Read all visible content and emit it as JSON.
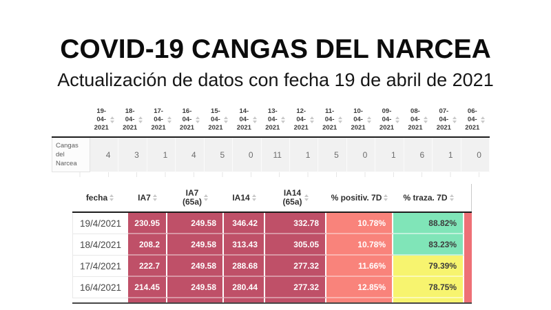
{
  "page": {
    "title": "COVID-19 CANGAS DEL NARCEA",
    "subtitle": "Actualización de datos con fecha 19 de abril de 2021"
  },
  "daily_cases_table": {
    "row_label": "Cangas del Narcea",
    "row_label_lines": [
      "Cangas",
      "del",
      "Narcea"
    ],
    "dates": [
      [
        "19-",
        "04-",
        "2021"
      ],
      [
        "18-",
        "04-",
        "2021"
      ],
      [
        "17-",
        "04-",
        "2021"
      ],
      [
        "16-",
        "04-",
        "2021"
      ],
      [
        "15-",
        "04-",
        "2021"
      ],
      [
        "14-",
        "04-",
        "2021"
      ],
      [
        "13-",
        "04-",
        "2021"
      ],
      [
        "12-",
        "04-",
        "2021"
      ],
      [
        "11-",
        "04-",
        "2021"
      ],
      [
        "10-",
        "04-",
        "2021"
      ],
      [
        "09-",
        "04-",
        "2021"
      ],
      [
        "08-",
        "04-",
        "2021"
      ],
      [
        "07-",
        "04-",
        "2021"
      ],
      [
        "06-",
        "04-",
        "2021"
      ]
    ],
    "values": [
      "4",
      "3",
      "1",
      "4",
      "5",
      "0",
      "11",
      "1",
      "5",
      "0",
      "1",
      "6",
      "1",
      "0"
    ]
  },
  "indicators_table": {
    "headers": {
      "fecha": "fecha",
      "ia7": "IA7",
      "ia7_65a_line1": "IA7",
      "ia7_65a_line2": "(65a)",
      "ia14": "IA14",
      "ia14_65a_line1": "IA14",
      "ia14_65a_line2": "(65a)",
      "positiv_7d": "% positiv. 7D",
      "traza_7d": "% traza. 7D"
    },
    "rows": [
      {
        "fecha": "19/4/2021",
        "ia7": "230.95",
        "ia7_65a": "249.58",
        "ia14": "346.42",
        "ia14_65a": "332.78",
        "positiv_7d": "10.78%",
        "traza_7d": "88.82%",
        "traza_level": "green"
      },
      {
        "fecha": "18/4/2021",
        "ia7": "208.2",
        "ia7_65a": "249.58",
        "ia14": "313.43",
        "ia14_65a": "305.05",
        "positiv_7d": "10.78%",
        "traza_7d": "83.23%",
        "traza_level": "green"
      },
      {
        "fecha": "17/4/2021",
        "ia7": "222.7",
        "ia7_65a": "249.58",
        "ia14": "288.68",
        "ia14_65a": "277.32",
        "positiv_7d": "11.66%",
        "traza_7d": "79.39%",
        "traza_level": "yellow"
      },
      {
        "fecha": "16/4/2021",
        "ia7": "214.45",
        "ia7_65a": "249.58",
        "ia14": "280.44",
        "ia14_65a": "277.32",
        "positiv_7d": "12.85%",
        "traza_7d": "78.75%",
        "traza_level": "yellow"
      }
    ]
  },
  "icons": {
    "sort": "sort-arrows-icon"
  },
  "colors": {
    "ia_cell_bg": "#bf5068",
    "positiv_cell_bg": "#f9837b",
    "traza_green_bg": "#80e5b8",
    "traza_yellow_bg": "#f7f46f",
    "edge_strip_bg": "#ee7076",
    "header_border": "#1c1c1c",
    "cases_cell_bg": "#f1f1f1"
  },
  "chart_data": [
    {
      "type": "table",
      "title": "",
      "columns": [
        "19-04-2021",
        "18-04-2021",
        "17-04-2021",
        "16-04-2021",
        "15-04-2021",
        "14-04-2021",
        "13-04-2021",
        "12-04-2021",
        "11-04-2021",
        "10-04-2021",
        "09-04-2021",
        "08-04-2021",
        "07-04-2021",
        "06-04-2021"
      ],
      "rows": [
        {
          "label": "Cangas del Narcea",
          "values": [
            4,
            3,
            1,
            4,
            5,
            0,
            11,
            1,
            5,
            0,
            1,
            6,
            1,
            0
          ]
        }
      ]
    },
    {
      "type": "table",
      "title": "",
      "columns": [
        "fecha",
        "IA7",
        "IA7 (65a)",
        "IA14",
        "IA14 (65a)",
        "% positiv. 7D",
        "% traza. 7D"
      ],
      "rows": [
        [
          "19/4/2021",
          230.95,
          249.58,
          346.42,
          332.78,
          "10.78%",
          "88.82%"
        ],
        [
          "18/4/2021",
          208.2,
          249.58,
          313.43,
          305.05,
          "10.78%",
          "83.23%"
        ],
        [
          "17/4/2021",
          222.7,
          249.58,
          288.68,
          277.32,
          "11.66%",
          "79.39%"
        ],
        [
          "16/4/2021",
          214.45,
          249.58,
          280.44,
          277.32,
          "12.85%",
          "78.75%"
        ]
      ]
    }
  ]
}
